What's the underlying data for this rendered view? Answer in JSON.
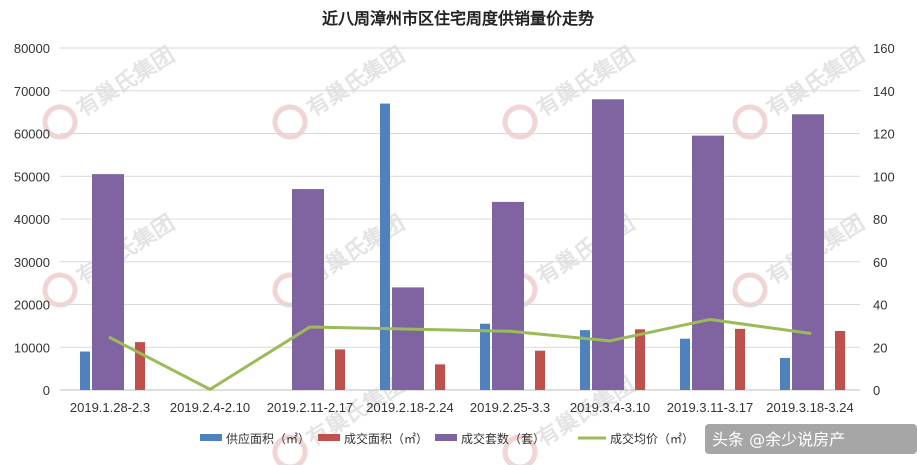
{
  "chart_data": {
    "type": "bar",
    "title": "近八周漳州市区住宅周度供销量价走势",
    "categories": [
      "2019.1.28-2.3",
      "2019.2.4-2.10",
      "2019.2.11-2.17",
      "2019.2.18-2.24",
      "2019.2.25-3.3",
      "2019.3.4-3.10",
      "2019.3.11-3.17",
      "2019.3.18-3.24"
    ],
    "ylim_left": [
      0,
      80000
    ],
    "yticks_left": [
      0,
      10000,
      20000,
      30000,
      40000,
      50000,
      60000,
      70000,
      80000
    ],
    "ylim_right": [
      0,
      160
    ],
    "yticks_right": [
      0,
      20,
      40,
      60,
      80,
      100,
      120,
      140,
      160
    ],
    "grid": true,
    "legend_position": "bottom",
    "series": [
      {
        "name": "供应面积（㎡）",
        "type": "bar",
        "axis": "left",
        "color": "#4f81bd",
        "values": [
          9000,
          0,
          0,
          67000,
          15500,
          14000,
          12000,
          7500
        ]
      },
      {
        "name": "成交面积（㎡）",
        "type": "bar",
        "axis": "left",
        "color": "#c0504d",
        "values": [
          11200,
          0,
          9500,
          6000,
          9200,
          14200,
          14300,
          13800
        ]
      },
      {
        "name": "成交套数（套）",
        "type": "bar",
        "axis": "left",
        "color": "#8064a2",
        "values": [
          50500,
          0,
          47000,
          24000,
          44000,
          68000,
          59500,
          64500
        ]
      },
      {
        "name": "成交均价（㎡）",
        "type": "line",
        "axis": "right",
        "color": "#9bbb59",
        "values": [
          24.5,
          0.3,
          29.5,
          28.5,
          27.5,
          23,
          33,
          26.5
        ]
      }
    ]
  },
  "watermark": {
    "text": "有巢氏集团"
  },
  "credit": {
    "text": "头条 @余少说房产"
  }
}
